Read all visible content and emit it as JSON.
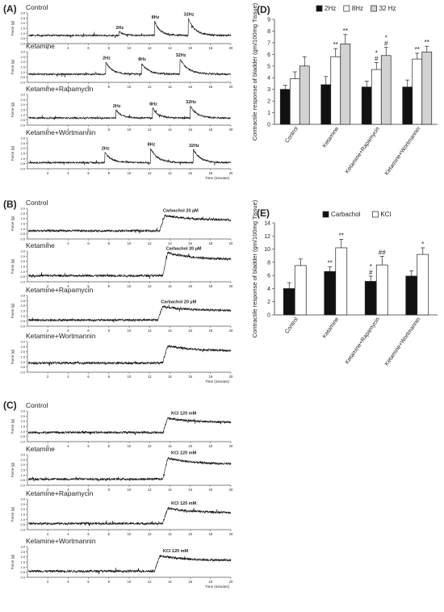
{
  "colors": {
    "trace": "#141414",
    "axis": "#555555",
    "bar_black": "#111111",
    "bar_gray": "#d2d2d2",
    "bar_white": "#ffffff"
  },
  "panel_labels": [
    "(A)",
    "(B)",
    "(C)",
    "(D)",
    "(E)"
  ],
  "traces": {
    "x_ticks": [
      "2",
      "4",
      "6",
      "8",
      "10",
      "12",
      "14",
      "16",
      "18",
      "20"
    ],
    "y_ticks": [
      "0.0",
      "0.5",
      "1.0",
      "1.5",
      "2.0",
      "2.5",
      "3.0"
    ],
    "y_label": "Force (g)",
    "time_label": "Time (minutes)",
    "panels": [
      {
        "id": "A",
        "rows": [
          {
            "label": "Control",
            "baseline": 0.8,
            "events": [
              {
                "t": 9.0,
                "amp": 0.4,
                "dur": 0.8,
                "label": "2Hz"
              },
              {
                "t": 12.5,
                "amp": 1.4,
                "dur": 1.0,
                "label": "8Hz"
              },
              {
                "t": 15.8,
                "amp": 1.7,
                "dur": 1.2,
                "label": "32Hz"
              }
            ]
          },
          {
            "label": "Ketamine",
            "baseline": 0.8,
            "events": [
              {
                "t": 7.7,
                "amp": 1.2,
                "dur": 1.1,
                "label": "2Hz"
              },
              {
                "t": 11.2,
                "amp": 1.1,
                "dur": 1.2,
                "label": "8Hz"
              },
              {
                "t": 15.0,
                "amp": 1.5,
                "dur": 1.4,
                "label": "32Hz"
              }
            ]
          },
          {
            "label": "Ketamine+Rapamycin",
            "baseline": 0.7,
            "events": [
              {
                "t": 8.7,
                "amp": 0.8,
                "dur": 1.0,
                "label": "2Hz"
              },
              {
                "t": 12.3,
                "amp": 1.0,
                "dur": 1.0,
                "label": "8Hz"
              },
              {
                "t": 16.0,
                "amp": 1.2,
                "dur": 1.2,
                "label": "32Hz"
              }
            ]
          },
          {
            "label": "Ketamine+Wortmannin",
            "baseline": 0.6,
            "events": [
              {
                "t": 7.6,
                "amp": 1.0,
                "dur": 1.2,
                "label": "2Hz"
              },
              {
                "t": 12.1,
                "amp": 1.4,
                "dur": 1.3,
                "label": "8Hz"
              },
              {
                "t": 16.3,
                "amp": 1.3,
                "dur": 1.2,
                "label": "32Hz"
              }
            ]
          }
        ]
      },
      {
        "id": "B",
        "rows": [
          {
            "label": "Control",
            "baseline": 0.8,
            "events": [
              {
                "t": 13.0,
                "amp": 1.6,
                "dur": 7.0,
                "label": "Carbachol 20 µM"
              }
            ]
          },
          {
            "label": "Ketamine",
            "baseline": 0.6,
            "events": [
              {
                "t": 13.3,
                "amp": 2.4,
                "dur": 6.7,
                "label": "Carbachol 20 µM"
              }
            ]
          },
          {
            "label": "Ketamine+Rapamycin",
            "baseline": 0.6,
            "events": [
              {
                "t": 12.8,
                "amp": 1.4,
                "dur": 7.2,
                "label": "Carbachol 20 µM"
              }
            ]
          },
          {
            "label": "Ketamine+Wortmannin",
            "baseline": 0.9,
            "events": [
              {
                "t": 13.3,
                "amp": 1.8,
                "dur": 6.7,
                "label": ""
              }
            ]
          }
        ]
      },
      {
        "id": "C",
        "rows": [
          {
            "label": "Control",
            "baseline": 0.9,
            "events": [
              {
                "t": 13.3,
                "amp": 1.5,
                "dur": 6.7,
                "label": "KCl  120 mM"
              }
            ]
          },
          {
            "label": "Ketamine",
            "baseline": 0.6,
            "events": [
              {
                "t": 13.3,
                "amp": 2.2,
                "dur": 6.7,
                "label": "KCl  120 mM"
              }
            ]
          },
          {
            "label": "Ketamine+Rapamycin",
            "baseline": 0.6,
            "events": [
              {
                "t": 13.3,
                "amp": 1.6,
                "dur": 6.7,
                "label": "KCl  120 mM"
              }
            ]
          },
          {
            "label": "Ketamine+Wortmannin",
            "baseline": 0.6,
            "events": [
              {
                "t": 12.5,
                "amp": 1.6,
                "dur": 7.5,
                "label": "KCl  120 mM"
              }
            ]
          }
        ]
      }
    ]
  },
  "chart_data": [
    {
      "panel": "D",
      "type": "bar",
      "ylabel": "Contractile response of bladder (gm/100mg Tissue)",
      "ylim": [
        0,
        9
      ],
      "yticks": [
        "0",
        "1",
        "2",
        "3",
        "4",
        "5",
        "6",
        "7",
        "8",
        "9"
      ],
      "categories": [
        "Control",
        "Ketamine",
        "Ketamine+Rapamycin",
        "Ketamine+Wortmannin"
      ],
      "legend_position": "top",
      "series": [
        {
          "name": "2Hz",
          "fill": "#111111",
          "values": [
            3.0,
            3.4,
            3.2,
            3.2
          ],
          "errors": [
            0.35,
            0.7,
            0.5,
            0.6
          ],
          "marks": [
            "",
            "",
            "",
            ""
          ]
        },
        {
          "name": "8Hz",
          "fill": "#ffffff",
          "values": [
            3.9,
            5.8,
            4.7,
            5.6
          ],
          "errors": [
            0.6,
            0.7,
            0.6,
            0.5
          ],
          "marks": [
            "",
            "**",
            "*\n#",
            "**"
          ]
        },
        {
          "name": "32 Hz",
          "fill": "#d2d2d2",
          "values": [
            5.0,
            6.9,
            5.9,
            6.2
          ],
          "errors": [
            0.8,
            0.8,
            0.7,
            0.5
          ],
          "marks": [
            "",
            "**",
            "*\n#",
            "**"
          ]
        }
      ]
    },
    {
      "panel": "E",
      "type": "bar",
      "ylabel": "Contractile response of bladder (gm/100mg Tissue)",
      "ylim": [
        0,
        14
      ],
      "yticks": [
        "0",
        "2",
        "4",
        "6",
        "8",
        "10",
        "12",
        "14"
      ],
      "categories": [
        "Control",
        "Ketamine",
        "Ketamine+Rapamycin",
        "Ketamine+Wortmannin"
      ],
      "legend_position": "top",
      "series": [
        {
          "name": "Carbachol",
          "fill": "#111111",
          "values": [
            4.0,
            6.6,
            5.1,
            5.9
          ],
          "errors": [
            0.9,
            0.7,
            0.8,
            0.8
          ],
          "marks": [
            "",
            "**",
            "*\n#",
            ""
          ]
        },
        {
          "name": "KCl",
          "fill": "#ffffff",
          "values": [
            7.5,
            10.2,
            7.6,
            9.2
          ],
          "errors": [
            1.0,
            1.3,
            1.3,
            1.0
          ],
          "marks": [
            "",
            "**",
            "##",
            "*"
          ]
        }
      ]
    }
  ]
}
